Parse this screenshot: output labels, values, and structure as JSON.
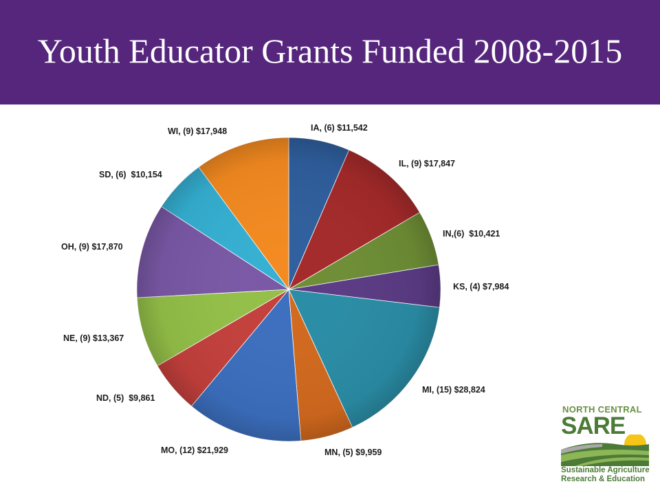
{
  "title": "Youth Educator Grants Funded 2008-2015",
  "chart_data": {
    "type": "pie",
    "title": "Youth Educator Grants Funded 2008-2015",
    "start_angle_deg": 0,
    "direction": "clockwise",
    "slices": [
      {
        "state": "IA",
        "grants": 6,
        "amount": 11542,
        "label": "IA, (6) $11,542",
        "color": "#2f5f9e"
      },
      {
        "state": "IL",
        "grants": 9,
        "amount": 17847,
        "label": "IL, (9) $17,847",
        "color": "#a52a2a"
      },
      {
        "state": "IN",
        "grants": 6,
        "amount": 10421,
        "label": "IN,(6)  $10,421",
        "color": "#6e8e35"
      },
      {
        "state": "KS",
        "grants": 4,
        "amount": 7984,
        "label": "KS, (4) $7,984",
        "color": "#5b3b85"
      },
      {
        "state": "MI",
        "grants": 15,
        "amount": 28824,
        "label": "MI, (15) $28,824",
        "color": "#2a8da6"
      },
      {
        "state": "MN",
        "grants": 5,
        "amount": 9959,
        "label": "MN, (5) $9,959",
        "color": "#d2691e"
      },
      {
        "state": "MO",
        "grants": 12,
        "amount": 21929,
        "label": "MO, (12) $21,929",
        "color": "#3c6fbf"
      },
      {
        "state": "ND",
        "grants": 5,
        "amount": 9861,
        "label": "ND, (5)  $9,861",
        "color": "#c4403c"
      },
      {
        "state": "NE",
        "grants": 9,
        "amount": 13367,
        "label": "NE, (9) $13,367",
        "color": "#94c048"
      },
      {
        "state": "OH",
        "grants": 9,
        "amount": 17870,
        "label": "OH, (9) $17,870",
        "color": "#7a58a6"
      },
      {
        "state": "SD",
        "grants": 6,
        "amount": 10154,
        "label": "SD, (6)  $10,154",
        "color": "#35b0d3"
      },
      {
        "state": "WI",
        "grants": 9,
        "amount": 17948,
        "label": "WI, (9) $17,948",
        "color": "#f48a20"
      }
    ]
  },
  "logo": {
    "top_text": "NORTH CENTRAL",
    "name": "SARE",
    "line1": "Sustainable Agriculture",
    "line2": "Research & Education",
    "colors": {
      "green": "#4c7a37",
      "light_green": "#8db657",
      "sun": "#f5c518"
    }
  }
}
